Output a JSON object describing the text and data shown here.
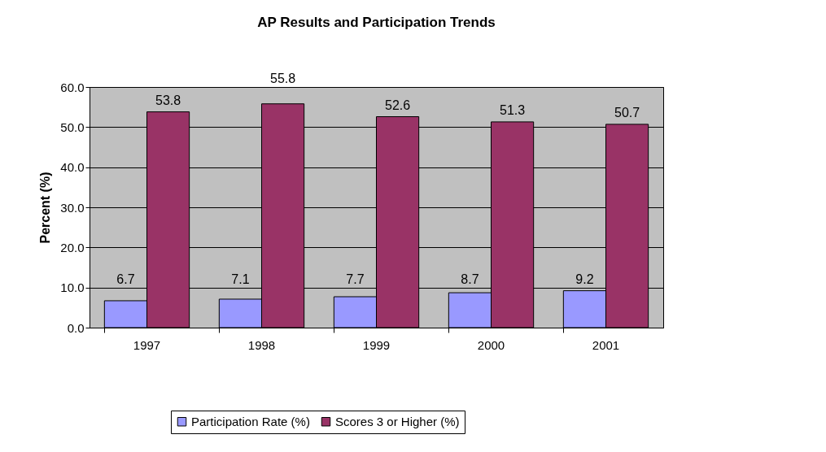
{
  "chart_data": {
    "type": "bar",
    "title": "AP Results and Participation Trends",
    "ylabel": "Percent (%)",
    "categories": [
      "1997",
      "1998",
      "1999",
      "2000",
      "2001"
    ],
    "series": [
      {
        "name": "Participation Rate (%)",
        "color": "#9999ff",
        "values": [
          6.7,
          7.1,
          7.7,
          8.7,
          9.2
        ]
      },
      {
        "name": "Scores 3 or Higher (%)",
        "color": "#993366",
        "values": [
          53.8,
          55.8,
          52.6,
          51.3,
          50.7
        ]
      }
    ],
    "ylim": [
      0,
      60
    ],
    "yticks": [
      {
        "value": 0,
        "label": "0.0"
      },
      {
        "value": 10,
        "label": "10.0"
      },
      {
        "value": 20,
        "label": "20.0"
      },
      {
        "value": 30,
        "label": "30.0"
      },
      {
        "value": 40,
        "label": "40.0"
      },
      {
        "value": 50,
        "label": "50.0"
      },
      {
        "value": 60,
        "label": "60.0"
      }
    ],
    "grid": "y",
    "legend": "bottom",
    "data_labels": true
  }
}
